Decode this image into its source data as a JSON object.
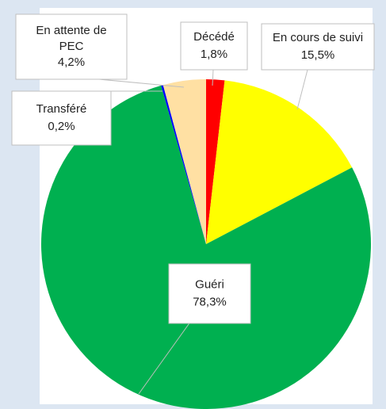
{
  "chart_data": {
    "type": "pie",
    "categories": [
      "Décédé",
      "En cours de suivi",
      "Guéri",
      "Transféré",
      "En attente de PEC"
    ],
    "values": [
      1.8,
      15.5,
      78.3,
      0.2,
      4.2
    ],
    "value_labels": [
      "1,8%",
      "15,5%",
      "78,3%",
      "0,2%",
      "4,2%"
    ],
    "colors": [
      "#ff0000",
      "#ffff00",
      "#00b050",
      "#0000ff",
      "#ffe0a3"
    ]
  }
}
